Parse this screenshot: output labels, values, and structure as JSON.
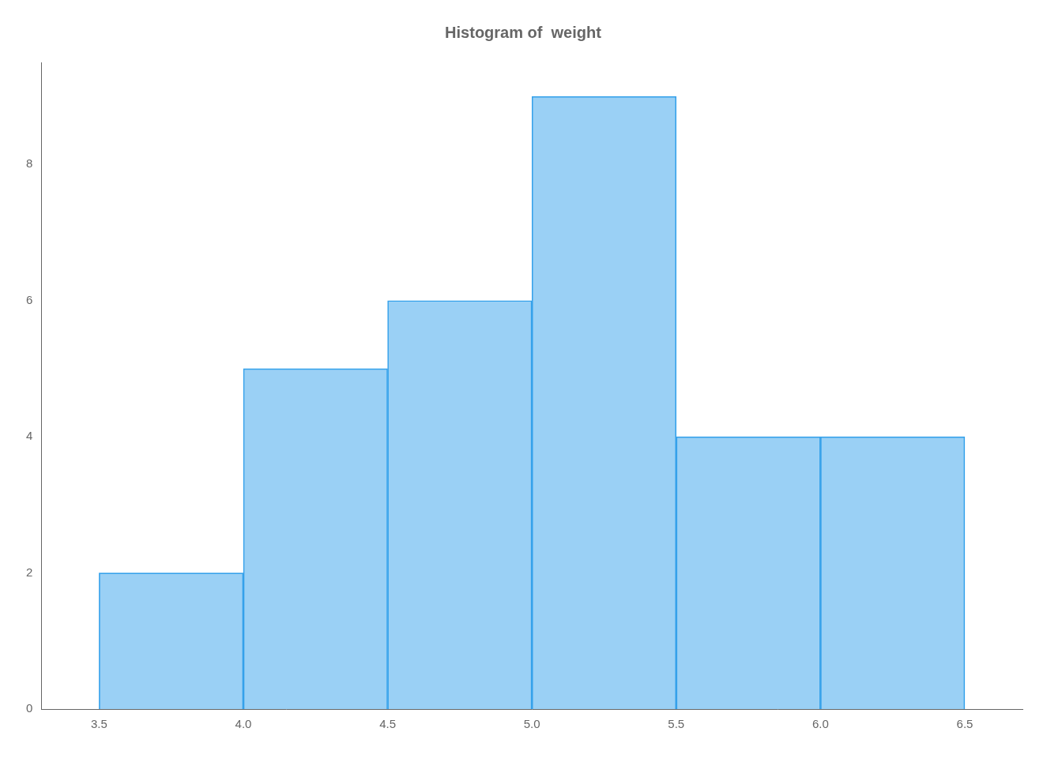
{
  "chart_data": {
    "type": "histogram",
    "title": "Histogram of  weight",
    "bins": [
      3.5,
      4.0,
      4.5,
      5.0,
      5.5,
      6.0,
      6.5
    ],
    "values": [
      2,
      5,
      6,
      9,
      4,
      4
    ],
    "xlim": [
      3.3,
      6.7
    ],
    "xticks": [
      3.5,
      {
        "value": 4.0,
        "label": "4.0"
      },
      4.5,
      {
        "value": 5.0,
        "label": "5.0"
      },
      5.5,
      {
        "value": 6.0,
        "label": "6.0"
      },
      6.5
    ],
    "ylim": [
      0,
      9.5
    ],
    "yticks": [
      0,
      2,
      4,
      6,
      8
    ],
    "grid": false
  }
}
